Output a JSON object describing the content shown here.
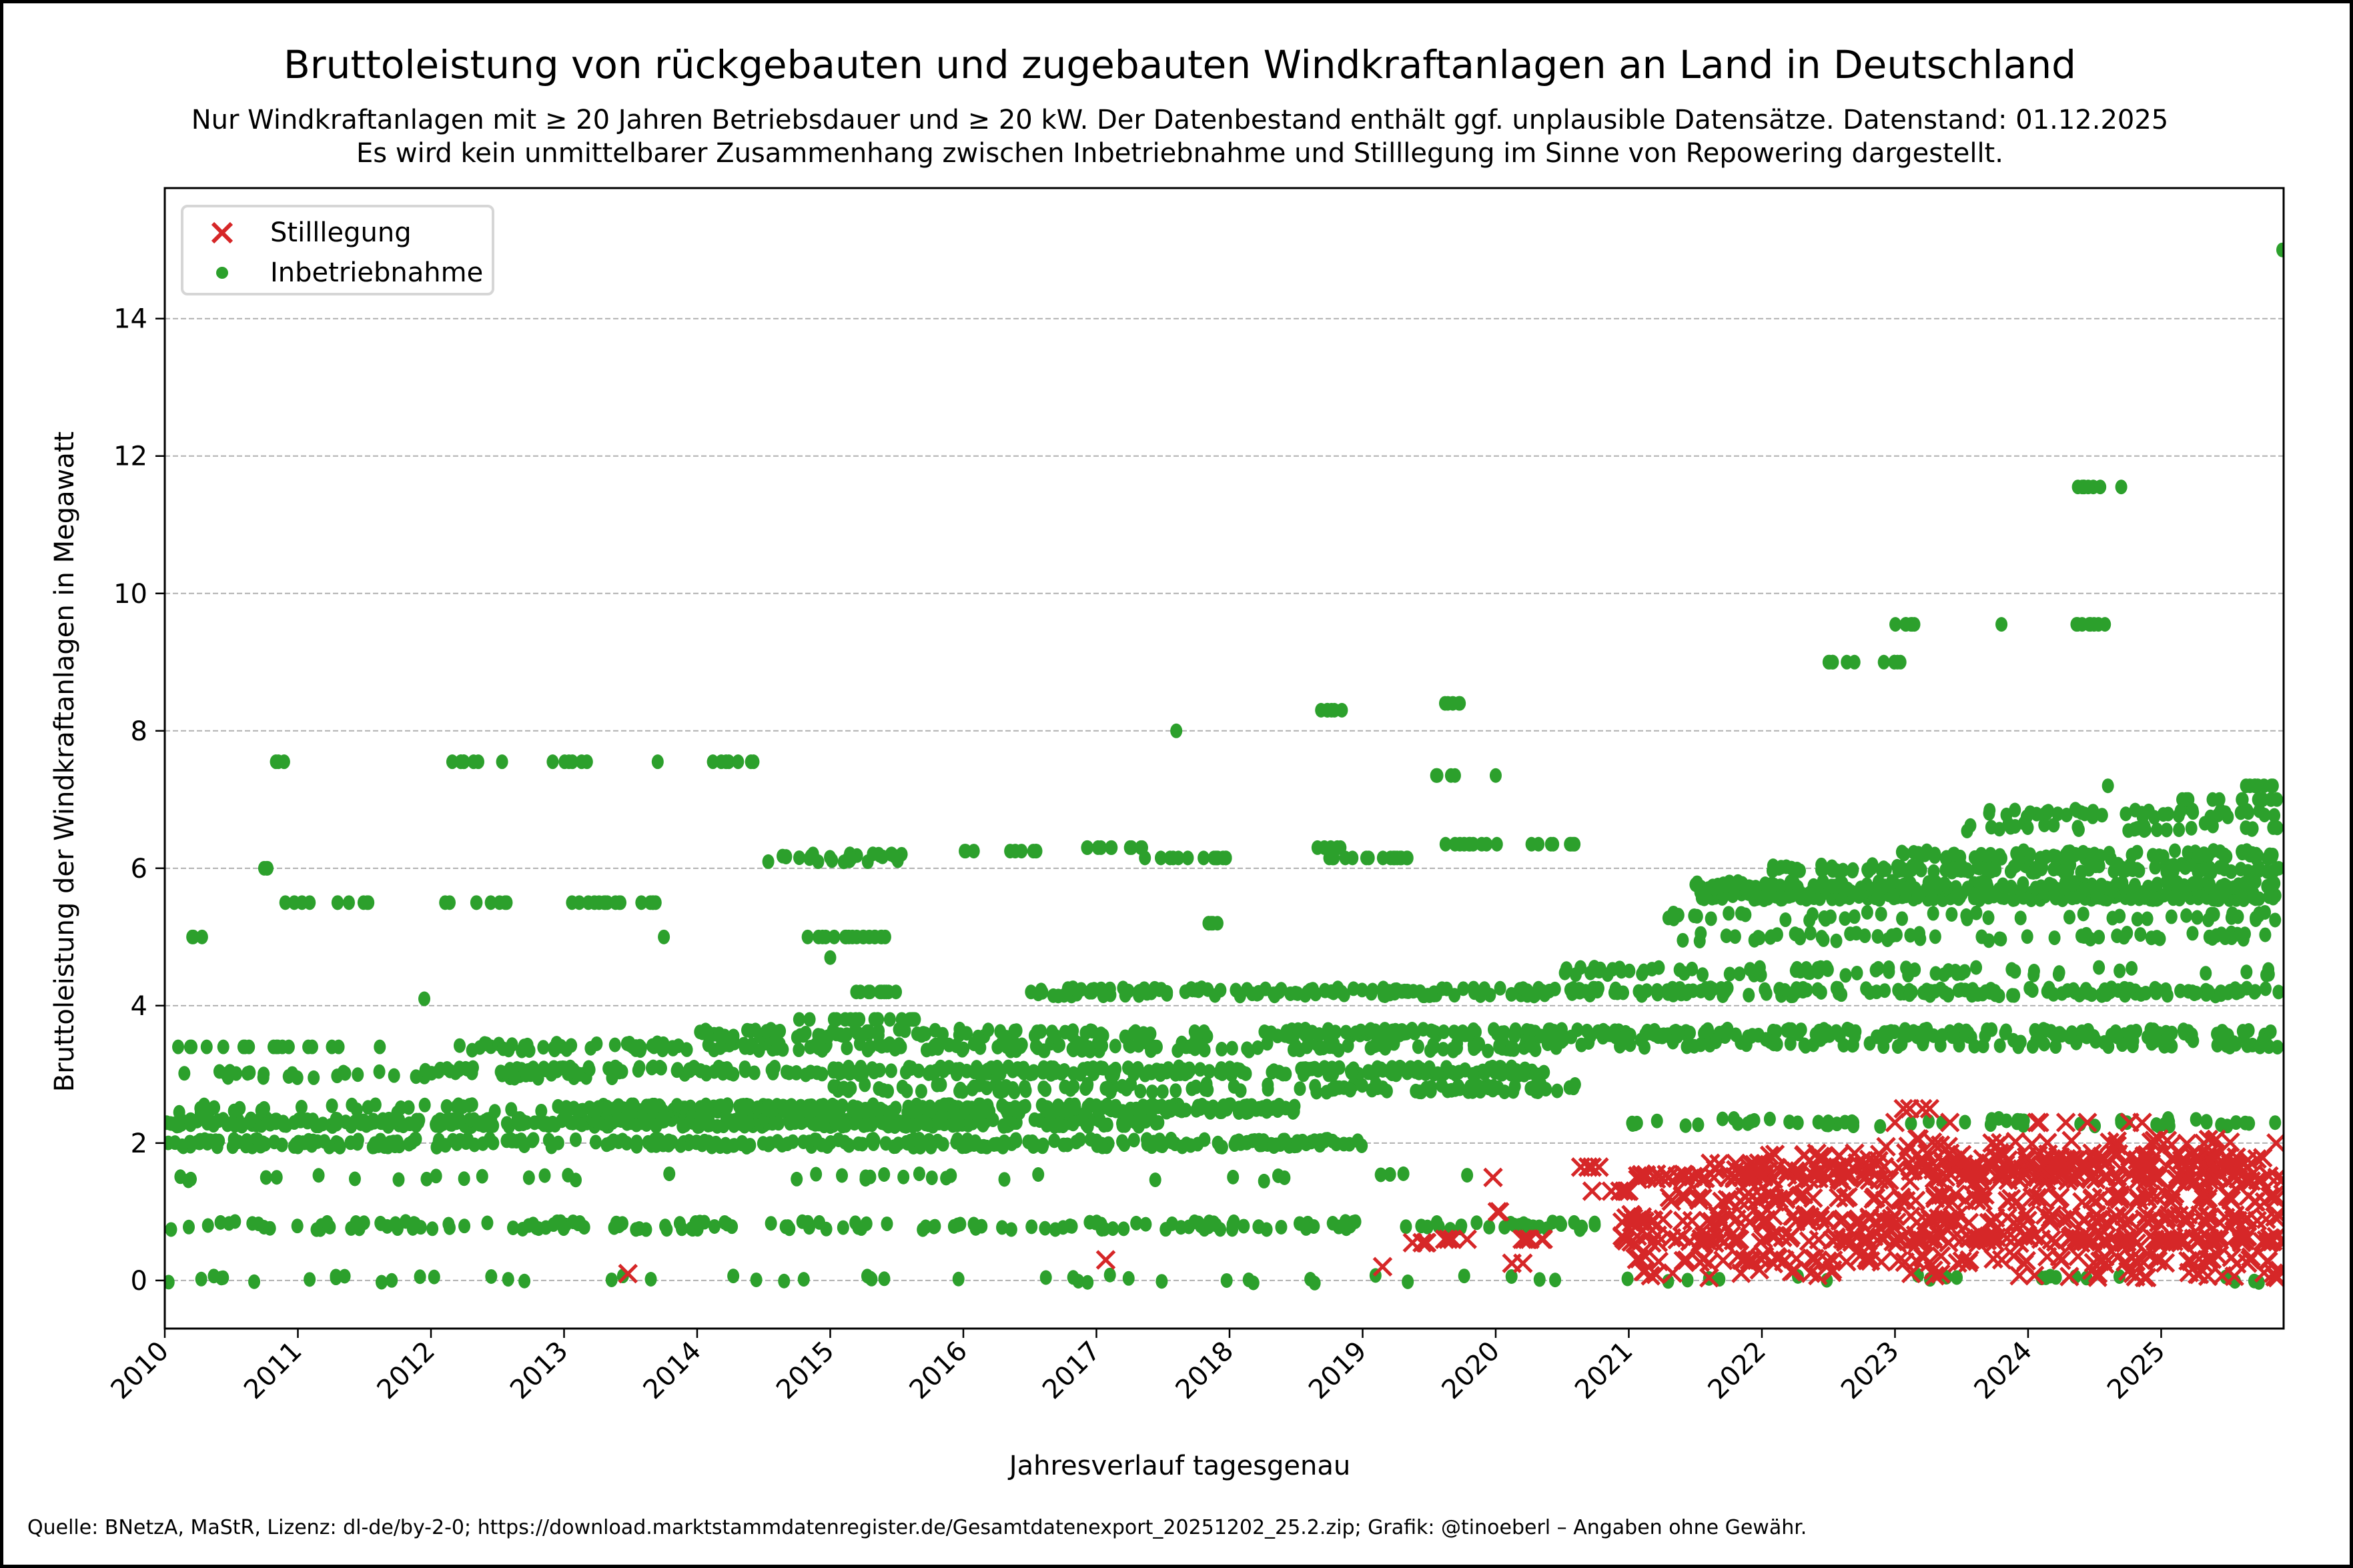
{
  "chart_data": {
    "type": "scatter",
    "title": "Bruttoleistung von rückgebauten und zugebauten Windkraftanlagen an Land in Deutschland",
    "subtitle": [
      "Nur Windkraftanlagen mit ≥ 20 Jahren Betriebsdauer und ≥ 20 kW. Der Datenbestand enthält ggf. unplausible Datensätze. Datenstand: 01.12.2025",
      "Es wird kein unmittelbarer Zusammenhang zwischen Inbetriebnahme und Stilllegung im Sinne von Repowering dargestellt."
    ],
    "xlabel": "Jahresverlauf tagesgenau",
    "ylabel": "Bruttoleistung der Windkraftanlagen in Megawatt",
    "xlim": [
      2010.0,
      2025.92
    ],
    "ylim": [
      -0.7,
      15.9
    ],
    "x_ticks": [
      "2010",
      "2011",
      "2012",
      "2013",
      "2014",
      "2015",
      "2016",
      "2017",
      "2018",
      "2019",
      "2020",
      "2021",
      "2022",
      "2023",
      "2024",
      "2025"
    ],
    "y_ticks": [
      0,
      2,
      4,
      6,
      8,
      10,
      12,
      14
    ],
    "grid": "y-dashed",
    "legend_position": "top-left",
    "footer": "Quelle: BNetzA, MaStR, Lizenz: dl-de/by-2-0; https://download.marktstammdatenregister.de/Gesamtdatenexport_20251202_25.2.zip; Grafik: @tinoeberl – Angaben ohne Gewähr.",
    "series": [
      {
        "name": "Stilllegung",
        "marker": "x",
        "color": "#d62728",
        "clusters": [
          {
            "x0": 2013.48,
            "x1": 2013.48,
            "y": 0.1,
            "n": 1
          },
          {
            "x0": 2017.07,
            "x1": 2017.07,
            "y": 0.3,
            "n": 1
          },
          {
            "x0": 2019.15,
            "x1": 2019.15,
            "y": 0.2,
            "n": 1
          },
          {
            "x0": 2019.3,
            "x1": 2019.5,
            "y": 0.55,
            "n": 4
          },
          {
            "x0": 2019.6,
            "x1": 2019.8,
            "y": 0.6,
            "n": 4
          },
          {
            "x0": 2019.98,
            "x1": 2020.02,
            "y": 1.5,
            "n": 1
          },
          {
            "x0": 2020.0,
            "x1": 2020.05,
            "y": 1.0,
            "n": 2
          },
          {
            "x0": 2020.0,
            "x1": 2020.4,
            "y": 0.6,
            "n": 6
          },
          {
            "x0": 2020.1,
            "x1": 2020.3,
            "y": 0.25,
            "n": 2
          },
          {
            "x0": 2020.6,
            "x1": 2020.8,
            "y": 1.65,
            "n": 4
          },
          {
            "x0": 2020.7,
            "x1": 2021.1,
            "y": 1.3,
            "n": 6
          },
          {
            "x0": 2020.9,
            "x1": 2025.92,
            "y": 0.6,
            "n": 180
          },
          {
            "x0": 2020.95,
            "x1": 2025.92,
            "y": 0.9,
            "n": 140
          },
          {
            "x0": 2021.0,
            "x1": 2025.92,
            "y": 0.3,
            "n": 90
          },
          {
            "x0": 2021.0,
            "x1": 2025.92,
            "y": 0.1,
            "n": 40
          },
          {
            "x0": 2021.0,
            "x1": 2025.92,
            "y": 1.5,
            "n": 150
          },
          {
            "x0": 2021.3,
            "x1": 2025.92,
            "y": 1.2,
            "n": 100
          },
          {
            "x0": 2021.6,
            "x1": 2025.92,
            "y": 1.65,
            "n": 110
          },
          {
            "x0": 2022.0,
            "x1": 2025.92,
            "y": 1.8,
            "n": 80
          },
          {
            "x0": 2022.8,
            "x1": 2025.92,
            "y": 2.0,
            "n": 30
          },
          {
            "x0": 2023.0,
            "x1": 2023.3,
            "y": 2.5,
            "n": 4
          },
          {
            "x0": 2022.8,
            "x1": 2025.5,
            "y": 2.3,
            "n": 8
          }
        ]
      },
      {
        "name": "Inbetriebnahme",
        "marker": "o",
        "color": "#2ca02c",
        "clusters": [
          {
            "x0": 2010.0,
            "x1": 2017.5,
            "y": 2.3,
            "n": 400
          },
          {
            "x0": 2010.0,
            "x1": 2019.0,
            "y": 2.0,
            "n": 300
          },
          {
            "x0": 2010.0,
            "x1": 2020.8,
            "y": 0.8,
            "n": 180
          },
          {
            "x0": 2010.0,
            "x1": 2020.0,
            "y": 1.5,
            "n": 40
          },
          {
            "x0": 2010.0,
            "x1": 2025.9,
            "y": 0.02,
            "n": 70
          },
          {
            "x0": 2010.1,
            "x1": 2013.5,
            "y": 3.0,
            "n": 40
          },
          {
            "x0": 2010.1,
            "x1": 2012.0,
            "y": 3.4,
            "n": 18
          },
          {
            "x0": 2010.1,
            "x1": 2013.0,
            "y": 2.5,
            "n": 30
          },
          {
            "x0": 2012.0,
            "x1": 2020.4,
            "y": 3.05,
            "n": 300
          },
          {
            "x0": 2012.2,
            "x1": 2020.3,
            "y": 3.4,
            "n": 200
          },
          {
            "x0": 2013.0,
            "x1": 2018.5,
            "y": 2.5,
            "n": 300
          },
          {
            "x0": 2014.0,
            "x1": 2021.5,
            "y": 3.6,
            "n": 150
          },
          {
            "x0": 2015.0,
            "x1": 2020.6,
            "y": 2.8,
            "n": 120
          },
          {
            "x0": 2016.5,
            "x1": 2025.9,
            "y": 4.2,
            "n": 300
          },
          {
            "x0": 2019.0,
            "x1": 2025.9,
            "y": 3.6,
            "n": 180
          },
          {
            "x0": 2020.0,
            "x1": 2025.9,
            "y": 3.45,
            "n": 100
          },
          {
            "x0": 2020.5,
            "x1": 2025.9,
            "y": 4.5,
            "n": 70
          },
          {
            "x0": 2021.0,
            "x1": 2025.9,
            "y": 2.3,
            "n": 60
          },
          {
            "x0": 2021.0,
            "x1": 2025.9,
            "y": 5.0,
            "n": 60
          },
          {
            "x0": 2021.2,
            "x1": 2025.9,
            "y": 5.3,
            "n": 50
          },
          {
            "x0": 2021.5,
            "x1": 2025.9,
            "y": 5.6,
            "n": 250
          },
          {
            "x0": 2021.5,
            "x1": 2025.9,
            "y": 5.75,
            "n": 150
          },
          {
            "x0": 2022.0,
            "x1": 2025.9,
            "y": 6.0,
            "n": 120
          },
          {
            "x0": 2023.0,
            "x1": 2025.9,
            "y": 6.2,
            "n": 80
          },
          {
            "x0": 2023.5,
            "x1": 2025.9,
            "y": 6.6,
            "n": 30
          },
          {
            "x0": 2023.7,
            "x1": 2025.9,
            "y": 6.8,
            "n": 45
          },
          {
            "x0": 2025.0,
            "x1": 2025.9,
            "y": 7.0,
            "n": 14
          },
          {
            "x0": 2025.6,
            "x1": 2025.9,
            "y": 7.2,
            "n": 8
          },
          {
            "x0": 2024.6,
            "x1": 2024.6,
            "y": 7.2,
            "n": 1
          },
          {
            "x0": 2010.2,
            "x1": 2010.3,
            "y": 5.0,
            "n": 3
          },
          {
            "x0": 2010.6,
            "x1": 2010.8,
            "y": 6.0,
            "n": 3
          },
          {
            "x0": 2010.8,
            "x1": 2010.95,
            "y": 7.55,
            "n": 3
          },
          {
            "x0": 2010.9,
            "x1": 2011.1,
            "y": 5.5,
            "n": 4
          },
          {
            "x0": 2011.25,
            "x1": 2011.6,
            "y": 5.5,
            "n": 6
          },
          {
            "x0": 2011.95,
            "x1": 2012.6,
            "y": 7.55,
            "n": 8
          },
          {
            "x0": 2012.0,
            "x1": 2012.7,
            "y": 5.5,
            "n": 8
          },
          {
            "x0": 2012.9,
            "x1": 2013.25,
            "y": 7.55,
            "n": 6
          },
          {
            "x0": 2012.9,
            "x1": 2013.7,
            "y": 5.5,
            "n": 16
          },
          {
            "x0": 2013.65,
            "x1": 2014.45,
            "y": 7.55,
            "n": 8
          },
          {
            "x0": 2014.5,
            "x1": 2015.65,
            "y": 6.15,
            "n": 28
          },
          {
            "x0": 2014.75,
            "x1": 2015.6,
            "y": 5.0,
            "n": 18
          },
          {
            "x0": 2015.05,
            "x1": 2015.5,
            "y": 4.2,
            "n": 10
          },
          {
            "x0": 2014.75,
            "x1": 2015.65,
            "y": 3.8,
            "n": 18
          },
          {
            "x0": 2016.0,
            "x1": 2016.1,
            "y": 6.25,
            "n": 3
          },
          {
            "x0": 2016.3,
            "x1": 2016.6,
            "y": 6.25,
            "n": 6
          },
          {
            "x0": 2016.9,
            "x1": 2017.35,
            "y": 6.3,
            "n": 10
          },
          {
            "x0": 2017.35,
            "x1": 2018.0,
            "y": 6.15,
            "n": 14
          },
          {
            "x0": 2017.6,
            "x1": 2017.6,
            "y": 8.0,
            "n": 1
          },
          {
            "x0": 2017.8,
            "x1": 2018.0,
            "y": 5.2,
            "n": 5
          },
          {
            "x0": 2018.55,
            "x1": 2018.85,
            "y": 8.3,
            "n": 6
          },
          {
            "x0": 2018.55,
            "x1": 2019.35,
            "y": 6.15,
            "n": 16
          },
          {
            "x0": 2018.65,
            "x1": 2018.85,
            "y": 6.3,
            "n": 5
          },
          {
            "x0": 2019.5,
            "x1": 2019.75,
            "y": 8.4,
            "n": 5
          },
          {
            "x0": 2019.5,
            "x1": 2019.75,
            "y": 7.35,
            "n": 5
          },
          {
            "x0": 2020.0,
            "x1": 2020.0,
            "y": 7.35,
            "n": 1
          },
          {
            "x0": 2019.6,
            "x1": 2020.1,
            "y": 6.35,
            "n": 10
          },
          {
            "x0": 2020.25,
            "x1": 2020.6,
            "y": 6.35,
            "n": 8
          },
          {
            "x0": 2022.5,
            "x1": 2022.75,
            "y": 9.0,
            "n": 6
          },
          {
            "x0": 2022.9,
            "x1": 2023.1,
            "y": 9.0,
            "n": 5
          },
          {
            "x0": 2023.0,
            "x1": 2023.25,
            "y": 9.55,
            "n": 6
          },
          {
            "x0": 2023.8,
            "x1": 2023.8,
            "y": 9.55,
            "n": 1
          },
          {
            "x0": 2024.35,
            "x1": 2024.65,
            "y": 9.55,
            "n": 8
          },
          {
            "x0": 2024.35,
            "x1": 2024.6,
            "y": 11.55,
            "n": 7
          },
          {
            "x0": 2024.7,
            "x1": 2024.7,
            "y": 11.55,
            "n": 1
          },
          {
            "x0": 2025.91,
            "x1": 2025.91,
            "y": 15.0,
            "n": 1
          },
          {
            "x0": 2011.95,
            "x1": 2011.95,
            "y": 4.1,
            "n": 1
          },
          {
            "x0": 2013.75,
            "x1": 2013.75,
            "y": 5.0,
            "n": 1
          },
          {
            "x0": 2015.0,
            "x1": 2015.0,
            "y": 4.7,
            "n": 1
          }
        ]
      }
    ]
  },
  "legend": {
    "items": [
      {
        "label": "Stilllegung",
        "marker": "x",
        "color": "#d62728"
      },
      {
        "label": "Inbetriebnahme",
        "marker": "o",
        "color": "#2ca02c"
      }
    ]
  }
}
